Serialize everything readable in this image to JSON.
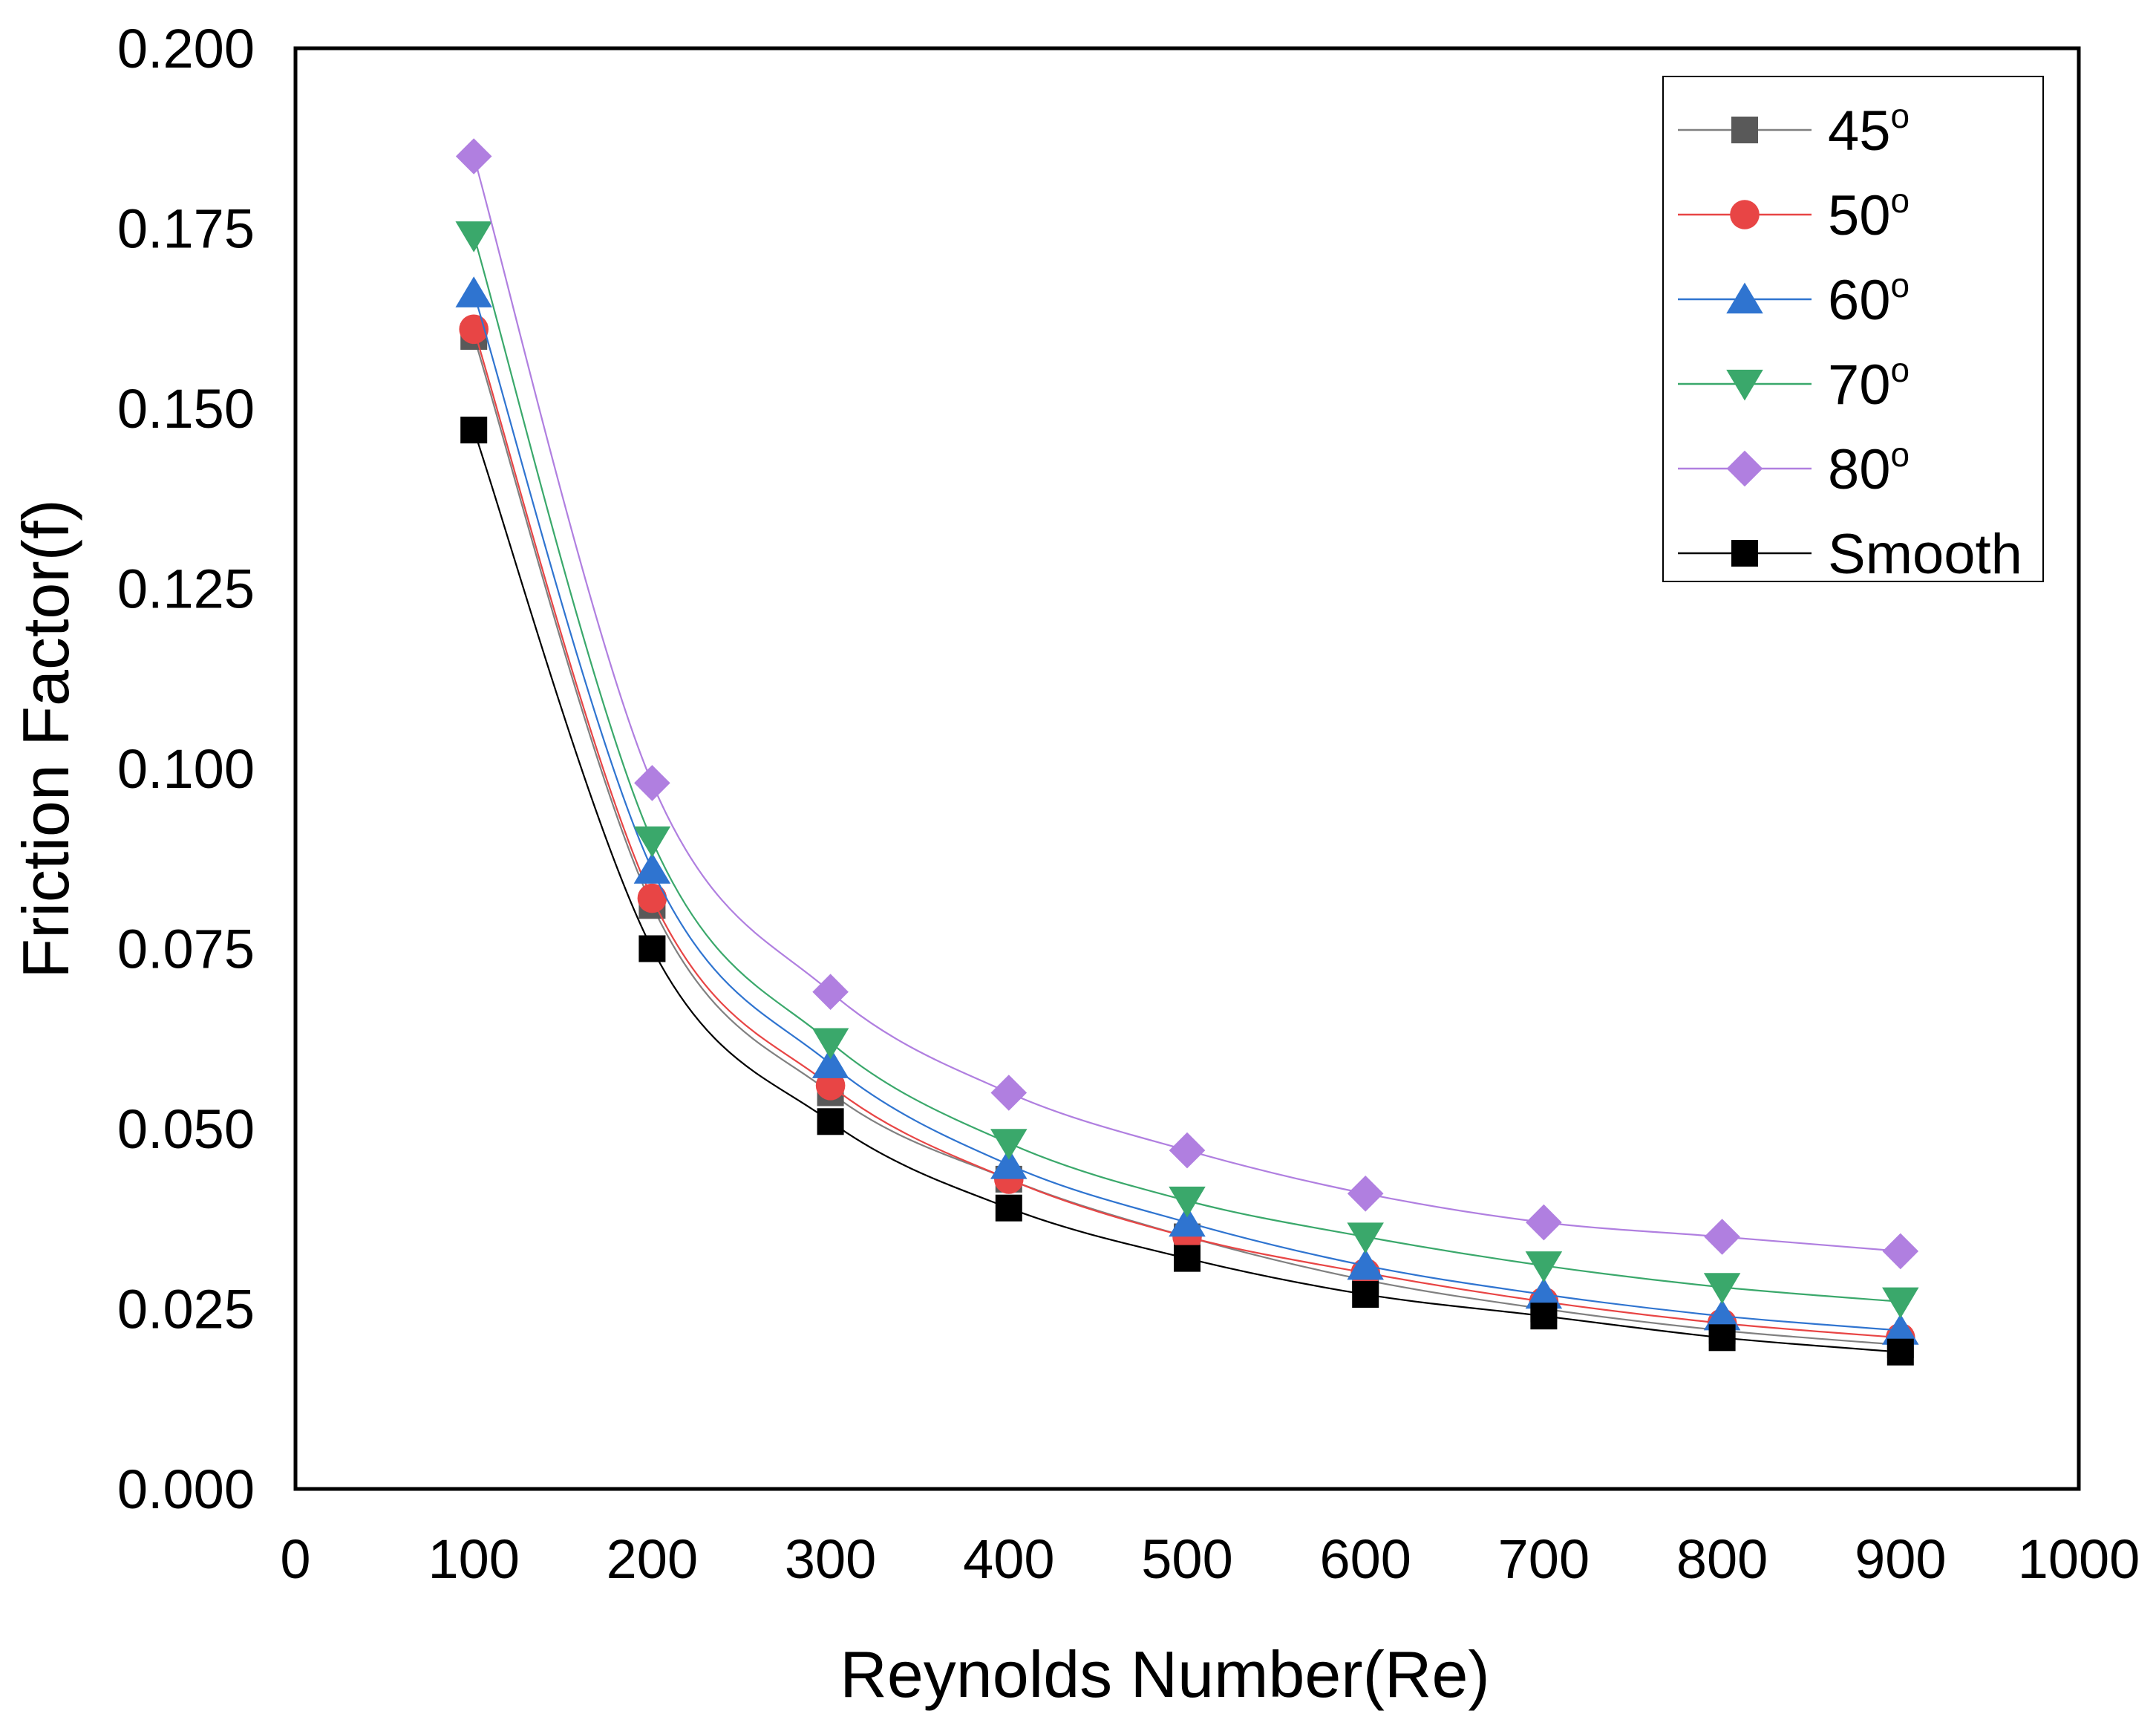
{
  "chart_data": {
    "type": "scatter",
    "title": "",
    "xlabel": "Reynolds Number(Re)",
    "ylabel": "Friction Factor(f)",
    "xlim": [
      0,
      1000
    ],
    "ylim": [
      0,
      0.2
    ],
    "x_ticks": [
      "0",
      "100",
      "200",
      "300",
      "400",
      "500",
      "600",
      "700",
      "800",
      "900",
      "1000"
    ],
    "y_ticks": [
      "0.000",
      "0.025",
      "0.050",
      "0.075",
      "0.100",
      "0.125",
      "0.150",
      "0.175",
      "0.200"
    ],
    "grid": false,
    "legend_position": "top-right",
    "x": [
      100,
      200,
      300,
      400,
      500,
      600,
      700,
      800,
      900
    ],
    "series": [
      {
        "name": "45",
        "name_sup": "o",
        "marker": "square",
        "color": "#595959",
        "line_color": "#808080",
        "values": [
          0.16,
          0.081,
          0.055,
          0.043,
          0.035,
          0.029,
          0.025,
          0.022,
          0.02
        ]
      },
      {
        "name": "50",
        "name_sup": "o",
        "marker": "circle",
        "color": "#e84545",
        "line_color": "#e84545",
        "values": [
          0.161,
          0.082,
          0.056,
          0.043,
          0.035,
          0.03,
          0.026,
          0.023,
          0.021
        ]
      },
      {
        "name": "60",
        "name_sup": "o",
        "marker": "triangle-up",
        "color": "#2f74d0",
        "line_color": "#2f74d0",
        "values": [
          0.166,
          0.086,
          0.059,
          0.045,
          0.037,
          0.031,
          0.027,
          0.024,
          0.022
        ]
      },
      {
        "name": "70",
        "name_sup": "o",
        "marker": "triangle-down",
        "color": "#3aa86b",
        "line_color": "#3aa86b",
        "values": [
          0.174,
          0.09,
          0.062,
          0.048,
          0.04,
          0.035,
          0.031,
          0.028,
          0.026
        ]
      },
      {
        "name": "80",
        "name_sup": "o",
        "marker": "diamond",
        "color": "#b07fe0",
        "line_color": "#b07fe0",
        "values": [
          0.185,
          0.098,
          0.069,
          0.055,
          0.047,
          0.041,
          0.037,
          0.035,
          0.033
        ]
      },
      {
        "name": "Smooth",
        "name_sup": "",
        "marker": "square",
        "color": "#000000",
        "line_color": "#000000",
        "values": [
          0.147,
          0.075,
          0.051,
          0.039,
          0.032,
          0.027,
          0.024,
          0.021,
          0.019
        ]
      }
    ]
  }
}
